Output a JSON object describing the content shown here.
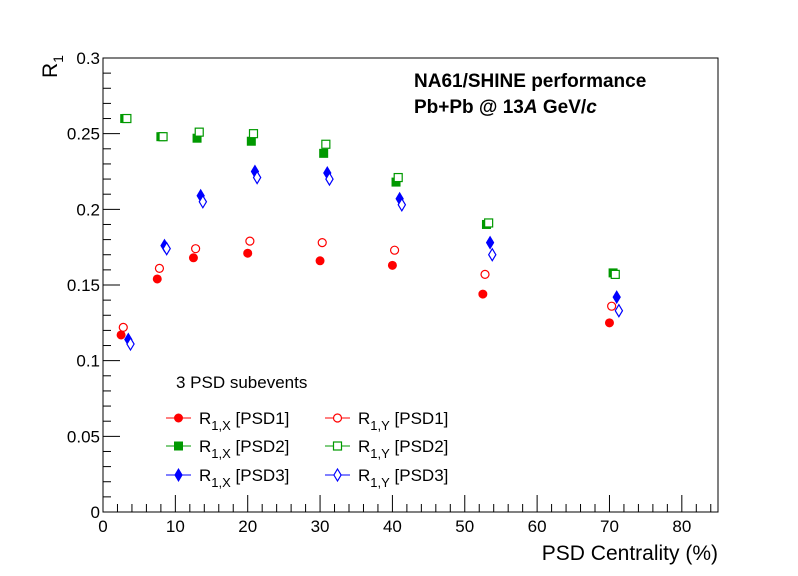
{
  "chart_data": {
    "type": "scatter",
    "title": "",
    "xlabel": "PSD Centrality (%)",
    "ylabel": {
      "main": "R",
      "sub": "1"
    },
    "xlim": [
      0,
      85
    ],
    "ylim": [
      0,
      0.3
    ],
    "x_ticks": [
      0,
      10,
      20,
      30,
      40,
      50,
      60,
      70,
      80
    ],
    "x_tick_labels": [
      "0",
      "10",
      "20",
      "30",
      "40",
      "50",
      "60",
      "70",
      "80"
    ],
    "y_ticks": [
      0,
      0.05,
      0.1,
      0.15,
      0.2,
      0.25,
      0.3
    ],
    "y_tick_labels": [
      "0",
      "0.05",
      "0.1",
      "0.15",
      "0.2",
      "0.25",
      "0.3"
    ],
    "annotation_line1": "NA61/SHINE performance",
    "annotation_line2_parts": [
      "Pb+Pb @ 13",
      "A",
      " GeV/",
      "c"
    ],
    "legend_header": "3 PSD subevents",
    "series": [
      {
        "name": "R1,X [PSD1]",
        "label_main": "R",
        "label_sub": "1,X",
        "label_rest": " [PSD1]",
        "color": "#ff0000",
        "marker": "circle",
        "filled": true,
        "x": [
          2.5,
          7.5,
          12.5,
          20,
          30,
          40,
          52.5,
          70
        ],
        "y": [
          0.117,
          0.154,
          0.168,
          0.171,
          0.166,
          0.163,
          0.144,
          0.125
        ]
      },
      {
        "name": "R1,Y [PSD1]",
        "label_main": "R",
        "label_sub": "1,Y",
        "label_rest": " [PSD1]",
        "color": "#ff0000",
        "marker": "circle",
        "filled": false,
        "x": [
          2.8,
          7.8,
          12.8,
          20.3,
          30.3,
          40.3,
          52.8,
          70.3
        ],
        "y": [
          0.122,
          0.161,
          0.174,
          0.179,
          0.178,
          0.173,
          0.157,
          0.136
        ]
      },
      {
        "name": "R1,X [PSD2]",
        "label_main": "R",
        "label_sub": "1,X",
        "label_rest": " [PSD2]",
        "color": "#009900",
        "marker": "square",
        "filled": true,
        "x": [
          3,
          8,
          13,
          20.5,
          30.5,
          40.5,
          53,
          70.5
        ],
        "y": [
          0.26,
          0.248,
          0.247,
          0.245,
          0.237,
          0.218,
          0.19,
          0.158
        ]
      },
      {
        "name": "R1,Y [PSD2]",
        "label_main": "R",
        "label_sub": "1,Y",
        "label_rest": " [PSD2]",
        "color": "#009900",
        "marker": "square",
        "filled": false,
        "x": [
          3.3,
          8.3,
          13.3,
          20.8,
          30.8,
          40.8,
          53.3,
          70.8
        ],
        "y": [
          0.26,
          0.248,
          0.251,
          0.25,
          0.243,
          0.221,
          0.191,
          0.157
        ]
      },
      {
        "name": "R1,X [PSD3]",
        "label_main": "R",
        "label_sub": "1,X",
        "label_rest": " [PSD3]",
        "color": "#0000ff",
        "marker": "diamond",
        "filled": true,
        "x": [
          3.5,
          8.5,
          13.5,
          21,
          31,
          41,
          53.5,
          71
        ],
        "y": [
          0.114,
          0.176,
          0.209,
          0.225,
          0.224,
          0.207,
          0.178,
          0.142
        ]
      },
      {
        "name": "R1,Y [PSD3]",
        "label_main": "R",
        "label_sub": "1,Y",
        "label_rest": " [PSD3]",
        "color": "#0000ff",
        "marker": "diamond",
        "filled": false,
        "x": [
          3.8,
          8.8,
          13.8,
          21.3,
          31.3,
          41.3,
          53.8,
          71.3
        ],
        "y": [
          0.111,
          0.174,
          0.205,
          0.221,
          0.22,
          0.203,
          0.17,
          0.133
        ]
      }
    ]
  }
}
